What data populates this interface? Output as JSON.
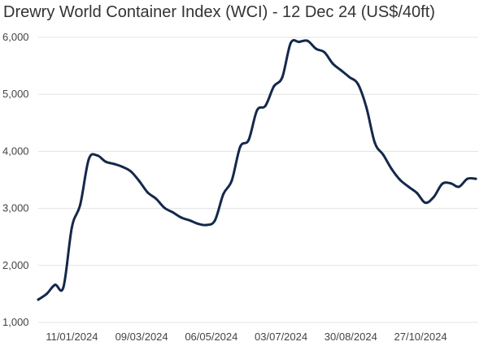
{
  "chart_data": {
    "type": "line",
    "title": "Drewry World Container Index (WCI) - 12 Dec 24 (US$/40ft)",
    "xlabel": "",
    "ylabel": "",
    "ylim": [
      1000,
      6000
    ],
    "yticks": [
      "1,000",
      "2,000",
      "3,000",
      "4,000",
      "5,000",
      "6,000"
    ],
    "xticks": [
      "11/01/2024",
      "09/03/2024",
      "06/05/2024",
      "03/07/2024",
      "30/08/2024",
      "27/10/2024"
    ],
    "grid": "horizontal",
    "line_color": "#14284b",
    "series": [
      {
        "x": [
          "2023-12-14",
          "2023-12-21",
          "2023-12-28",
          "2024-01-04",
          "2024-01-11",
          "2024-01-18",
          "2024-01-25",
          "2024-02-01",
          "2024-02-08",
          "2024-02-15",
          "2024-02-22",
          "2024-02-29",
          "2024-03-07",
          "2024-03-14",
          "2024-03-21",
          "2024-03-28",
          "2024-04-04",
          "2024-04-11",
          "2024-04-18",
          "2024-04-25",
          "2024-05-02",
          "2024-05-09",
          "2024-05-16",
          "2024-05-23",
          "2024-05-30",
          "2024-06-06",
          "2024-06-13",
          "2024-06-20",
          "2024-06-27",
          "2024-07-04",
          "2024-07-11",
          "2024-07-18",
          "2024-07-25",
          "2024-08-01",
          "2024-08-08",
          "2024-08-15",
          "2024-08-22",
          "2024-08-29",
          "2024-09-05",
          "2024-09-12",
          "2024-09-19",
          "2024-09-26",
          "2024-10-03",
          "2024-10-10",
          "2024-10-17",
          "2024-10-24",
          "2024-10-31",
          "2024-11-07",
          "2024-11-14",
          "2024-11-21",
          "2024-11-28",
          "2024-12-05",
          "2024-12-12"
        ],
        "values": [
          1400,
          1500,
          1660,
          1620,
          2670,
          3070,
          3860,
          3930,
          3820,
          3780,
          3730,
          3650,
          3480,
          3280,
          3170,
          3010,
          2930,
          2840,
          2790,
          2730,
          2710,
          2790,
          3250,
          3490,
          4080,
          4200,
          4720,
          4800,
          5140,
          5300,
          5900,
          5920,
          5940,
          5800,
          5740,
          5540,
          5420,
          5300,
          5180,
          4770,
          4150,
          3940,
          3690,
          3500,
          3380,
          3270,
          3100,
          3200,
          3430,
          3440,
          3380,
          3520,
          3520
        ]
      }
    ]
  }
}
